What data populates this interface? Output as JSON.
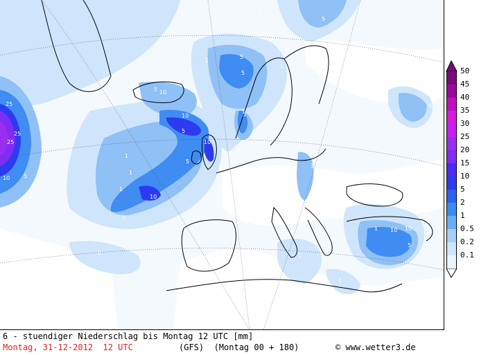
{
  "footer": {
    "line1": "6 - stuendiger Niederschlag bis Montag 12 UTC [mm]",
    "date": "Montag, 31-12-2012  12 UTC",
    "model": "(GFS)  (Montag 00 + 180)",
    "copyright": "www.wetter3.de"
  },
  "legend": {
    "levels": [
      {
        "label": "50",
        "color": "#7a0a78"
      },
      {
        "label": "45",
        "color": "#9b0a9b"
      },
      {
        "label": "40",
        "color": "#c010c0"
      },
      {
        "label": "35",
        "color": "#d81adc"
      },
      {
        "label": "30",
        "color": "#c71ef2"
      },
      {
        "label": "25",
        "color": "#9a2ef0"
      },
      {
        "label": "20",
        "color": "#7f2df5"
      },
      {
        "label": "15",
        "color": "#4d2af6"
      },
      {
        "label": "10",
        "color": "#2d3bf0"
      },
      {
        "label": "5",
        "color": "#2a63ef"
      },
      {
        "label": "2",
        "color": "#3a8cf2"
      },
      {
        "label": "1",
        "color": "#6aaef5"
      },
      {
        "label": "0.5",
        "color": "#a6cef8"
      },
      {
        "label": "0.2",
        "color": "#cfe5fb"
      },
      {
        "label": "0.1",
        "color": "#eaf4fe"
      }
    ]
  },
  "map": {
    "contour_labels": [
      "1",
      "2",
      "5",
      "10",
      "25"
    ]
  }
}
